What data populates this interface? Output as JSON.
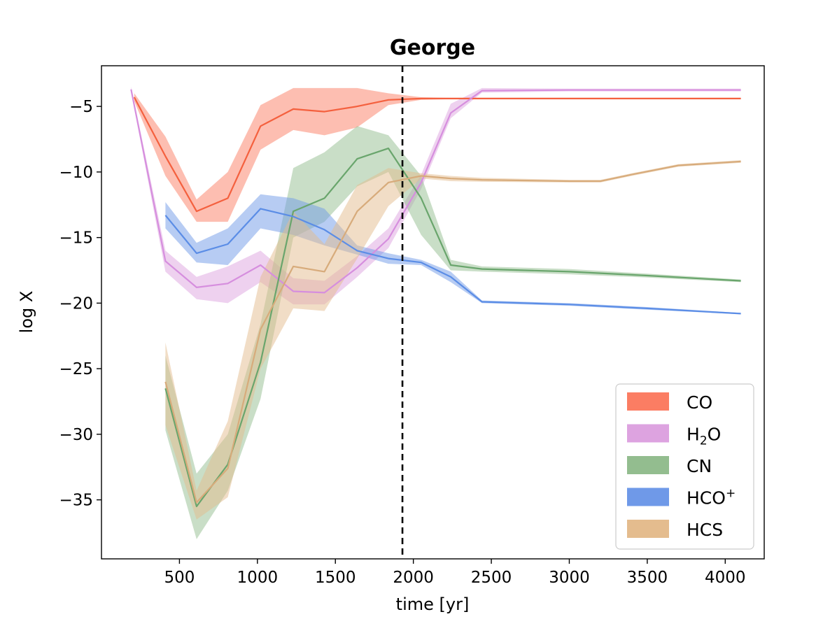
{
  "chart_data": {
    "type": "line",
    "title": "George",
    "xlabel": "time [yr]",
    "ylabel": "log X",
    "xlim": [
      0,
      4250
    ],
    "ylim": [
      -39.5,
      -1.9
    ],
    "xticks": [
      500,
      1000,
      1500,
      2000,
      2500,
      3000,
      3500,
      4000
    ],
    "yticks": [
      -5,
      -10,
      -15,
      -20,
      -25,
      -30,
      -35
    ],
    "grid": false,
    "legend_position": "bottom-right",
    "vline": {
      "x": 1930,
      "style": "dashed",
      "color": "#000000"
    },
    "series": [
      {
        "name": "CO",
        "legend_label": "CO",
        "color": "#f4603e",
        "fill_color": "#fb7d63",
        "x": [
          210,
          410,
          610,
          810,
          1020,
          1230,
          1430,
          1640,
          1840,
          2050,
          2240,
          2440,
          3000,
          3500,
          4100
        ],
        "y": [
          -4.3,
          -8.8,
          -13.0,
          -12.0,
          -6.5,
          -5.2,
          -5.4,
          -5.0,
          -4.5,
          -4.4,
          -4.4,
          -4.4,
          -4.4,
          -4.4,
          -4.4
        ],
        "lower": [
          -4.6,
          -10.3,
          -13.8,
          -13.8,
          -8.3,
          -6.8,
          -7.2,
          -6.6,
          -4.9,
          -4.5,
          -4.45,
          -4.45,
          -4.45,
          -4.45,
          -4.45
        ],
        "upper": [
          -4.0,
          -7.3,
          -12.1,
          -10.0,
          -4.9,
          -3.6,
          -3.6,
          -3.6,
          -4.0,
          -4.3,
          -4.35,
          -4.35,
          -4.35,
          -4.35,
          -4.35
        ]
      },
      {
        "name": "H2O",
        "legend_label": "H",
        "legend_sub": "2",
        "legend_tail": "O",
        "color": "#d68ede",
        "fill_color": "#dda3e0",
        "x": [
          190,
          410,
          610,
          810,
          1020,
          1230,
          1430,
          1640,
          1840,
          2050,
          2240,
          2440,
          3000,
          3500,
          4100
        ],
        "y": [
          -3.7,
          -16.8,
          -18.8,
          -18.5,
          -17.1,
          -19.1,
          -19.2,
          -17.3,
          -15.1,
          -10.8,
          -5.5,
          -3.8,
          -3.75,
          -3.75,
          -3.75
        ],
        "lower": [
          -3.9,
          -17.6,
          -19.7,
          -20.0,
          -18.4,
          -20.1,
          -20.1,
          -18.0,
          -15.8,
          -11.3,
          -5.9,
          -3.95,
          -3.85,
          -3.85,
          -3.85
        ],
        "upper": [
          -3.5,
          -16.0,
          -18.0,
          -17.2,
          -16.0,
          -18.1,
          -18.3,
          -16.4,
          -14.3,
          -10.2,
          -4.8,
          -3.6,
          -3.65,
          -3.65,
          -3.65
        ]
      },
      {
        "name": "CN",
        "legend_label": "CN",
        "color": "#69a56c",
        "fill_color": "#93bd8f",
        "x": [
          410,
          610,
          810,
          1020,
          1230,
          1430,
          1640,
          1840,
          2050,
          2240,
          2440,
          3000,
          3500,
          4100
        ],
        "y": [
          -26.5,
          -35.5,
          -32.3,
          -24.5,
          -13.0,
          -12.0,
          -9.0,
          -8.2,
          -12.0,
          -17.1,
          -17.4,
          -17.6,
          -17.9,
          -18.3
        ],
        "lower": [
          -29.7,
          -38.0,
          -34.3,
          -27.3,
          -15.0,
          -13.8,
          -11.1,
          -10.0,
          -14.8,
          -17.5,
          -17.6,
          -17.8,
          -18.05,
          -18.4
        ],
        "upper": [
          -24.0,
          -33.0,
          -30.0,
          -21.6,
          -9.7,
          -8.5,
          -6.5,
          -7.2,
          -10.3,
          -16.7,
          -17.2,
          -17.4,
          -17.75,
          -18.2
        ]
      },
      {
        "name": "HCO+",
        "legend_label": "HCO",
        "legend_sup": "+",
        "color": "#5b8de6",
        "fill_color": "#6f99e8",
        "x": [
          410,
          610,
          810,
          1020,
          1230,
          1430,
          1640,
          1840,
          2050,
          2240,
          2440,
          3000,
          3500,
          4100
        ],
        "y": [
          -13.3,
          -16.2,
          -15.5,
          -12.8,
          -13.4,
          -14.4,
          -16.0,
          -16.6,
          -16.9,
          -18.0,
          -19.9,
          -20.1,
          -20.4,
          -20.8
        ],
        "lower": [
          -14.3,
          -16.9,
          -17.1,
          -14.3,
          -14.8,
          -15.6,
          -16.3,
          -17.0,
          -17.1,
          -18.4,
          -20.0,
          -20.2,
          -20.5,
          -20.85
        ],
        "upper": [
          -12.3,
          -15.4,
          -14.3,
          -11.7,
          -12.0,
          -12.8,
          -15.6,
          -16.2,
          -16.7,
          -17.6,
          -19.8,
          -20.0,
          -20.3,
          -20.75
        ]
      },
      {
        "name": "HCS",
        "legend_label": "HCS",
        "color": "#d7ab7b",
        "fill_color": "#e4bc8e",
        "x": [
          410,
          610,
          810,
          1020,
          1230,
          1430,
          1640,
          1840,
          2050,
          2240,
          2440,
          3000,
          3200,
          3400,
          3700,
          4100
        ],
        "y": [
          -26.0,
          -35.2,
          -32.6,
          -22.0,
          -17.2,
          -17.6,
          -13.0,
          -10.8,
          -10.3,
          -10.5,
          -10.6,
          -10.7,
          -10.7,
          -10.2,
          -9.5,
          -9.2
        ],
        "lower": [
          -29.3,
          -36.5,
          -34.8,
          -25.0,
          -20.4,
          -20.6,
          -16.6,
          -12.6,
          -10.5,
          -10.7,
          -10.75,
          -10.8,
          -10.8,
          -10.3,
          -9.6,
          -9.3
        ],
        "upper": [
          -23.0,
          -34.3,
          -29.0,
          -18.0,
          -13.0,
          -15.5,
          -11.0,
          -9.7,
          -10.1,
          -10.3,
          -10.45,
          -10.6,
          -10.6,
          -10.1,
          -9.4,
          -9.1
        ]
      }
    ]
  }
}
